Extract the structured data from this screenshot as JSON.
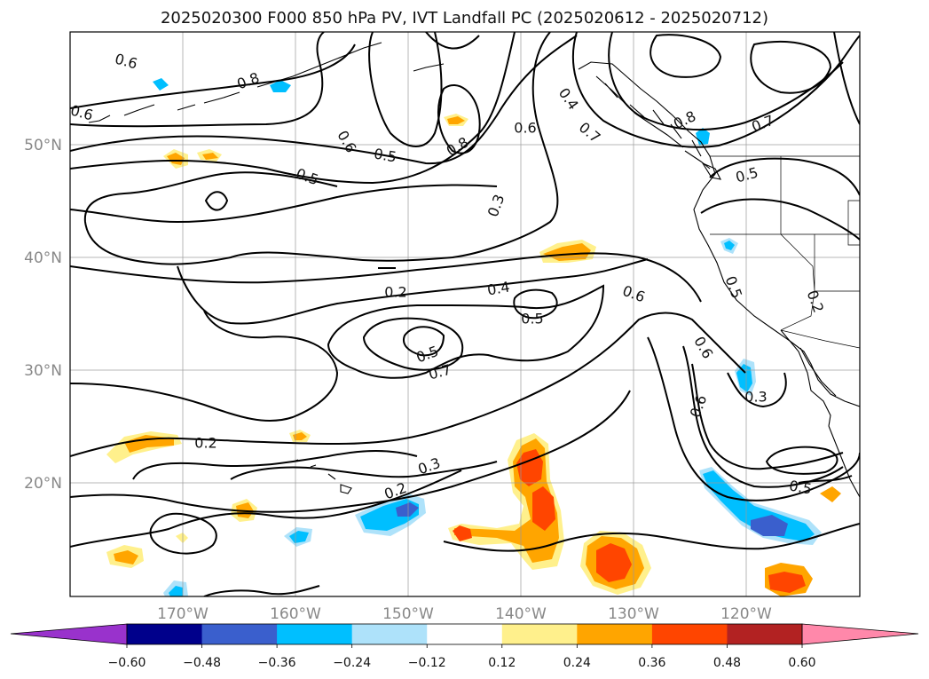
{
  "title": "2025020300 F000 850 hPa PV, IVT Landfall PC (2025020612 - 2025020712)",
  "lon_labels": [
    "170°W",
    "160°W",
    "150°W",
    "140°W",
    "130°W",
    "120°W"
  ],
  "lat_labels": [
    "50°N",
    "40°N",
    "30°N",
    "20°N"
  ],
  "contour_labels": [
    "0.6",
    "0.8",
    "0.6",
    "0.6",
    "0.5",
    "0.5",
    "0.8",
    "0.3",
    "0.4",
    "0.6",
    "0.7",
    "0.8",
    "0.7",
    "0.5",
    "0.2",
    "0.4",
    "0.5",
    "0.6",
    "0.5",
    "0.7",
    "0.6",
    "0.6",
    "0.5",
    "0.3",
    "0.2",
    "0.3",
    "0.2",
    "0.2",
    "0.5"
  ],
  "colorbar": {
    "ticks": [
      "−0.60",
      "−0.48",
      "−0.36",
      "−0.24",
      "−0.12",
      "0.12",
      "0.24",
      "0.36",
      "0.48",
      "0.60"
    ],
    "colors": [
      "#9932cc",
      "#00008b",
      "#3a5fcd",
      "#00bfff",
      "#aee2fa",
      "#ffffff",
      "#fff08c",
      "#ffa500",
      "#ff4500",
      "#b22222",
      "#ff88aa"
    ]
  }
}
